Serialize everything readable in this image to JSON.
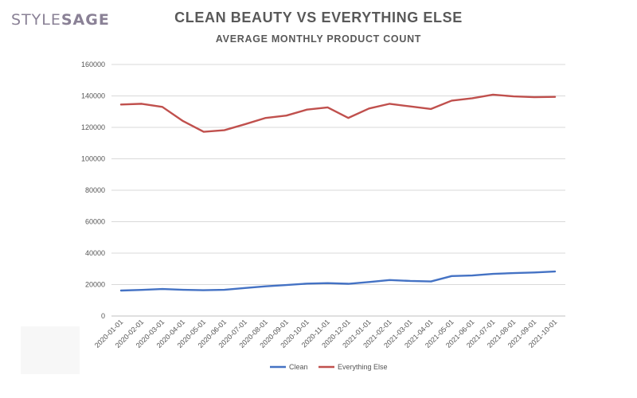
{
  "brand": {
    "part1": "STYLE",
    "part2": "SAGE"
  },
  "chart_data": {
    "type": "line",
    "title": "CLEAN BEAUTY VS EVERYTHING ELSE",
    "subtitle": "AVERAGE MONTHLY PRODUCT COUNT",
    "xlabel": "",
    "ylabel": "",
    "x": [
      "2020-01-01",
      "2020-02-01",
      "2020-03-01",
      "2020-04-01",
      "2020-05-01",
      "2020-06-01",
      "2020-07-01",
      "2020-08-01",
      "2020-09-01",
      "2020-10-01",
      "2020-11-01",
      "2020-12-01",
      "2021-01-01",
      "2021-02-01",
      "2021-03-01",
      "2021-04-01",
      "2021-05-01",
      "2021-06-01",
      "2021-07-01",
      "2021-08-01",
      "2021-09-01",
      "2021-10-01"
    ],
    "yticks": [
      "0",
      "20000",
      "40000",
      "60000",
      "80000",
      "100000",
      "120000",
      "140000",
      "160000"
    ],
    "ylim": [
      0,
      160000
    ],
    "grid": true,
    "legend_position": "bottom",
    "series": [
      {
        "name": "Clean",
        "color": "#4472c4",
        "values": [
          16200,
          16600,
          17200,
          16700,
          16400,
          16700,
          17800,
          18900,
          19700,
          20600,
          20900,
          20500,
          21600,
          22900,
          22300,
          22000,
          25400,
          25800,
          26800,
          27300,
          27700,
          28300
        ]
      },
      {
        "name": "Everything Else",
        "color": "#c0504d",
        "values": [
          134500,
          135000,
          133000,
          124000,
          117200,
          118200,
          122000,
          126000,
          127500,
          131300,
          132700,
          126000,
          132000,
          135000,
          133300,
          131700,
          137000,
          138500,
          140800,
          139700,
          139200,
          139400
        ]
      }
    ]
  }
}
